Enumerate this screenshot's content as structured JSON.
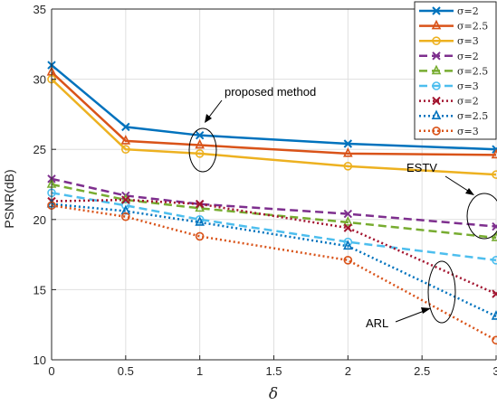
{
  "chart_data": {
    "type": "line",
    "title": "",
    "xlabel": "δ",
    "ylabel": "PSNR(dB)",
    "x": [
      0,
      0.5,
      1,
      2,
      3
    ],
    "xlim": [
      0,
      3
    ],
    "ylim": [
      10,
      35
    ],
    "xticks": [
      "0",
      "0.5",
      "1",
      "1.5",
      "2",
      "2.5",
      "3"
    ],
    "yticks": [
      "10",
      "15",
      "20",
      "25",
      "30",
      "35"
    ],
    "grid": true,
    "legend_position": "top-right",
    "series": [
      {
        "name": "σ=2",
        "color": "#0072BD",
        "style": "solid",
        "marker": "x",
        "values": [
          31.0,
          26.6,
          26.0,
          25.4,
          25.0
        ]
      },
      {
        "name": "σ=2.5",
        "color": "#D95319",
        "style": "solid",
        "marker": "triangle",
        "values": [
          30.5,
          25.6,
          25.3,
          24.7,
          24.6
        ]
      },
      {
        "name": "σ=3",
        "color": "#EDB120",
        "style": "solid",
        "marker": "circle",
        "values": [
          30.0,
          25.0,
          24.7,
          23.8,
          23.2
        ]
      },
      {
        "name": "σ=2",
        "color": "#7E2F8E",
        "style": "dashed",
        "marker": "x",
        "values": [
          22.9,
          21.7,
          21.1,
          20.4,
          19.5
        ]
      },
      {
        "name": "σ=2.5",
        "color": "#77AC30",
        "style": "dashed",
        "marker": "triangle",
        "values": [
          22.5,
          21.4,
          20.8,
          19.8,
          18.7
        ]
      },
      {
        "name": "σ=3",
        "color": "#4DBEEE",
        "style": "dashed",
        "marker": "circle",
        "values": [
          21.9,
          21.0,
          20.0,
          18.4,
          17.1
        ]
      },
      {
        "name": "σ=2",
        "color": "#A2142F",
        "style": "dotted",
        "marker": "x",
        "values": [
          21.3,
          21.4,
          21.1,
          19.4,
          14.7
        ]
      },
      {
        "name": "σ=2.5",
        "color": "#0072BD",
        "style": "dotted",
        "marker": "triangle",
        "values": [
          21.1,
          20.6,
          19.8,
          18.1,
          13.1
        ]
      },
      {
        "name": "σ=3",
        "color": "#D95319",
        "style": "dotted",
        "marker": "circle",
        "values": [
          21.0,
          20.2,
          18.8,
          17.1,
          11.4
        ]
      }
    ],
    "annotations": [
      {
        "text": "proposed method"
      },
      {
        "text": "ESTV"
      },
      {
        "text": "ARL"
      }
    ]
  }
}
